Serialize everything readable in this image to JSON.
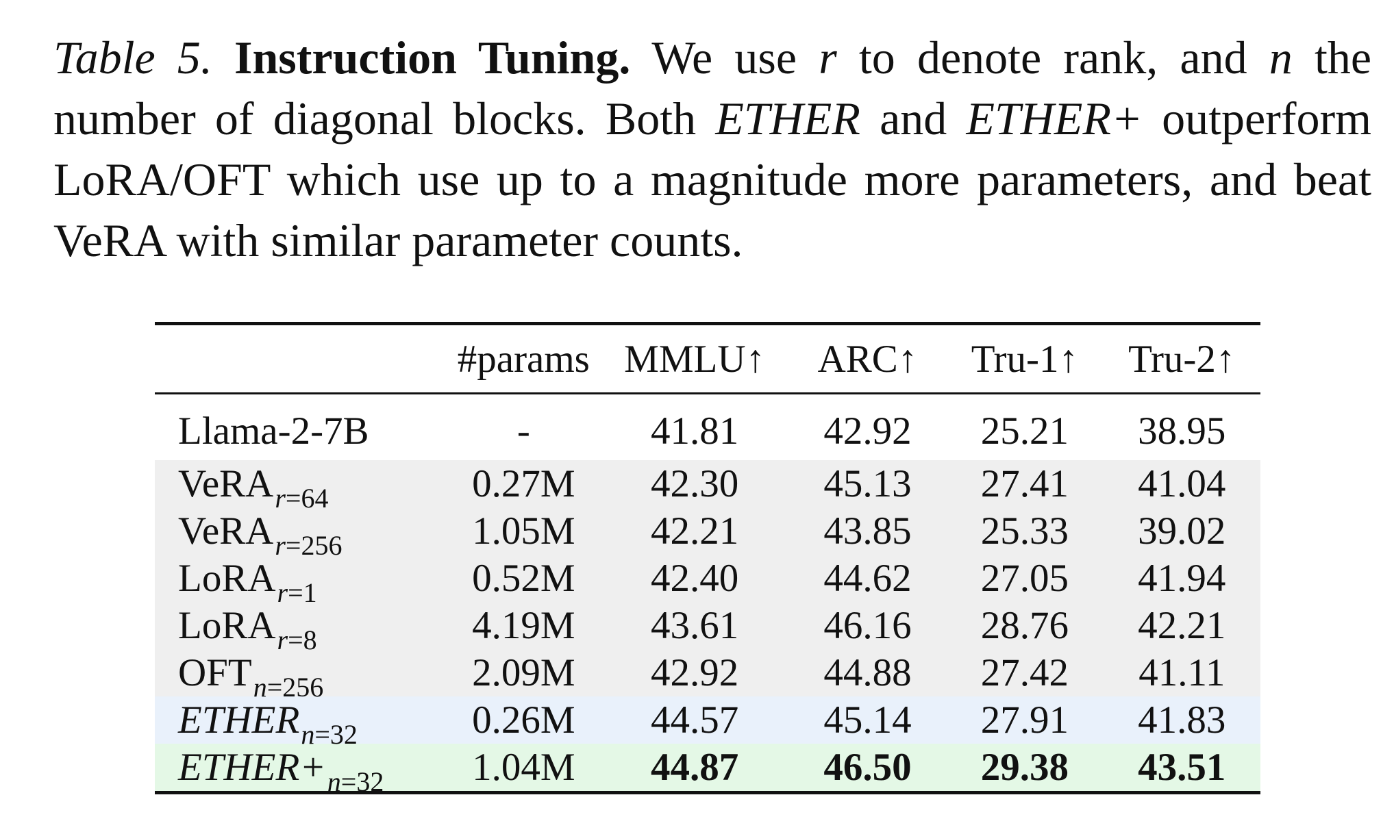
{
  "caption": {
    "label": "Table 5.",
    "bold": "Instruction Tuning.",
    "seg1": "We use",
    "var_r": "r",
    "seg2": "to denote rank, and",
    "var_n": "n",
    "seg3": "the number of diagonal blocks. Both",
    "ether": "ETHER",
    "seg4": "and",
    "ether_plus": "ETHER+",
    "seg5": "outperform LoRA/OFT which use up to a magnitude more parameters, and beat VeRA with similar parameter counts."
  },
  "table": {
    "headers": [
      "",
      "#params",
      "MMLU↑",
      "ARC↑",
      "Tru-1↑",
      "Tru-2↑"
    ],
    "rows": [
      {
        "method": "Llama-2-7B",
        "sub_var": "",
        "sub_eq": "",
        "sub_val": "",
        "params": "-",
        "mmlu": "41.81",
        "arc": "42.92",
        "tru1": "25.21",
        "tru2": "38.95"
      },
      {
        "method": "VeRA",
        "sub_var": "r",
        "sub_eq": "=",
        "sub_val": "64",
        "params": "0.27M",
        "mmlu": "42.30",
        "arc": "45.13",
        "tru1": "27.41",
        "tru2": "41.04"
      },
      {
        "method": "VeRA",
        "sub_var": "r",
        "sub_eq": "=",
        "sub_val": "256",
        "params": "1.05M",
        "mmlu": "42.21",
        "arc": "43.85",
        "tru1": "25.33",
        "tru2": "39.02"
      },
      {
        "method": "LoRA",
        "sub_var": "r",
        "sub_eq": "=",
        "sub_val": "1",
        "params": "0.52M",
        "mmlu": "42.40",
        "arc": "44.62",
        "tru1": "27.05",
        "tru2": "41.94"
      },
      {
        "method": "LoRA",
        "sub_var": "r",
        "sub_eq": "=",
        "sub_val": "8",
        "params": "4.19M",
        "mmlu": "43.61",
        "arc": "46.16",
        "tru1": "28.76",
        "tru2": "42.21"
      },
      {
        "method": "OFT",
        "sub_var": "n",
        "sub_eq": "=",
        "sub_val": "256",
        "params": "2.09M",
        "mmlu": "42.92",
        "arc": "44.88",
        "tru1": "27.42",
        "tru2": "41.11"
      },
      {
        "method": "ETHER",
        "sub_var": "n",
        "sub_eq": "=",
        "sub_val": "32",
        "params": "0.26M",
        "mmlu": "44.57",
        "arc": "45.14",
        "tru1": "27.91",
        "tru2": "41.83"
      },
      {
        "method": "ETHER+",
        "sub_var": "n",
        "sub_eq": "=",
        "sub_val": "32",
        "params": "1.04M",
        "mmlu": "44.87",
        "arc": "46.50",
        "tru1": "29.38",
        "tru2": "43.51"
      }
    ]
  },
  "colors": {
    "baseline_rows": "#efefef",
    "ether_row": "#e9f1fb",
    "ether_plus_row": "#e4f8e6"
  }
}
